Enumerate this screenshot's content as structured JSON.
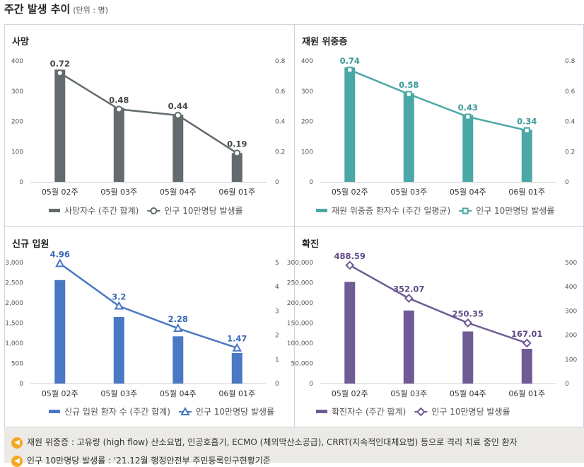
{
  "page": {
    "title": "주간 발생 추이",
    "unit_note": "(단위 : 명)"
  },
  "chart_data": [
    {
      "type": "bar",
      "title": "사망",
      "categories": [
        "05월 02주",
        "05월 03주",
        "05월 04주",
        "06월 01주"
      ],
      "series": [
        {
          "name": "사망자수 (주간 합계)",
          "kind": "bar",
          "axis": "left",
          "color": "#636b6e",
          "values": [
            371,
            245,
            222,
            95
          ]
        },
        {
          "name": "인구 10만명당 발생률",
          "kind": "line",
          "axis": "right",
          "color": "#636b6e",
          "marker": "circle",
          "values": [
            0.72,
            0.48,
            0.44,
            0.19
          ],
          "labels": [
            "0.72",
            "0.48",
            "0.44",
            "0.19"
          ],
          "label_color": "#444444"
        }
      ],
      "y_left": {
        "ticks": [
          "0",
          "100",
          "200",
          "300",
          "400"
        ],
        "range": [
          0,
          400
        ]
      },
      "y_right": {
        "ticks": [
          "0",
          "0.2",
          "0.4",
          "0.6",
          "0.8"
        ],
        "range": [
          0,
          0.8
        ]
      }
    },
    {
      "type": "bar",
      "title": "재원 위중증",
      "categories": [
        "05월 02주",
        "05월 03주",
        "05월 04주",
        "06월 01주"
      ],
      "series": [
        {
          "name": "재원 위중증 환자수 (주간 일평균)",
          "kind": "bar",
          "axis": "left",
          "color": "#4aa8a6",
          "values": [
            378,
            293,
            221,
            172
          ]
        },
        {
          "name": "인구 10만명당 발생률",
          "kind": "line",
          "axis": "right",
          "color": "#4aa8a6",
          "marker": "square",
          "values": [
            0.74,
            0.58,
            0.43,
            0.34
          ],
          "labels": [
            "0.74",
            "0.58",
            "0.43",
            "0.34"
          ],
          "label_color": "#3a9a98"
        }
      ],
      "y_left": {
        "ticks": [
          "0",
          "100",
          "200",
          "300",
          "400"
        ],
        "range": [
          0,
          400
        ]
      },
      "y_right": {
        "ticks": [
          "0",
          "0.2",
          "0.4",
          "0.6",
          "0.8"
        ],
        "range": [
          0,
          0.8
        ]
      }
    },
    {
      "type": "bar",
      "title": "신규 입원",
      "categories": [
        "05월 02주",
        "05월 03주",
        "05월 04주",
        "06월 01주"
      ],
      "series": [
        {
          "name": "신규 입원 환자 수 (주간 합계)",
          "kind": "bar",
          "axis": "left",
          "color": "#4a78c4",
          "values": [
            2565,
            1650,
            1170,
            755
          ]
        },
        {
          "name": "인구 10만명당 발생률",
          "kind": "line",
          "axis": "right",
          "color": "#4a78c4",
          "marker": "triangle",
          "values": [
            4.96,
            3.2,
            2.28,
            1.47
          ],
          "labels": [
            "4.96",
            "3.2",
            "2.28",
            "1.47"
          ],
          "label_color": "#3a68b4"
        }
      ],
      "y_left": {
        "ticks": [
          "0",
          "500",
          "1,000",
          "1,500",
          "2,000",
          "2,500",
          "3,000"
        ],
        "range": [
          0,
          3000
        ]
      },
      "y_right": {
        "ticks": [
          "0",
          "1",
          "2",
          "3",
          "4",
          "5"
        ],
        "range": [
          0,
          5
        ]
      }
    },
    {
      "type": "bar",
      "title": "확진",
      "categories": [
        "05월 02주",
        "05월 03주",
        "05월 04주",
        "06월 01주"
      ],
      "series": [
        {
          "name": "확진자수 (주간 합계)",
          "kind": "bar",
          "axis": "left",
          "color": "#6f5b95",
          "values": [
            252000,
            181000,
            129000,
            86000
          ]
        },
        {
          "name": "인구 10만명당 발생률",
          "kind": "line",
          "axis": "right",
          "color": "#6f5b95",
          "marker": "diamond",
          "values": [
            488.59,
            352.07,
            250.35,
            167.01
          ],
          "labels": [
            "488.59",
            "352.07",
            "250.35",
            "167.01"
          ],
          "label_color": "#5e4a84"
        }
      ],
      "y_left": {
        "ticks": [
          "0",
          "50,000",
          "100,000",
          "150,000",
          "200,000",
          "250,000",
          "300,000"
        ],
        "range": [
          0,
          300000
        ]
      },
      "y_right": {
        "ticks": [
          "0",
          "100",
          "200",
          "300",
          "400",
          "500"
        ],
        "range": [
          0,
          500
        ]
      }
    }
  ],
  "footer": {
    "notes": [
      "재원 위중증 : 고유량 (high flow) 산소요법, 인공호흡기, ECMO (체외막산소공급), CRRT(지속적인대체요법) 등으로 격리 치료 중인 환자",
      "인구 10만명당 발생률 : '21.12월 행정안전부 주민등록인구현황기준"
    ]
  }
}
